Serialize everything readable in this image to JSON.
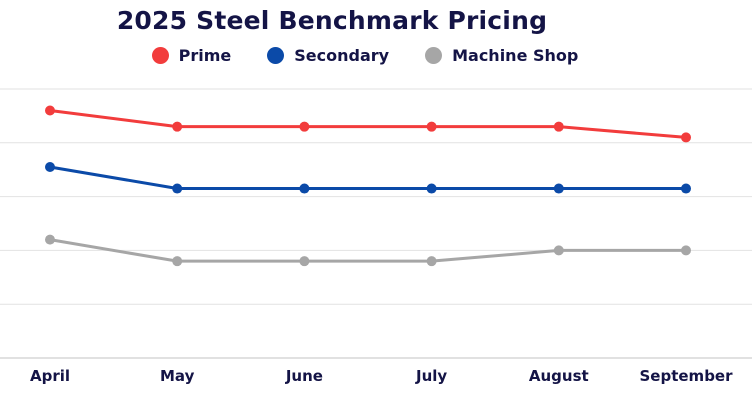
{
  "chart_data": {
    "type": "line",
    "title": "2025 Steel Benchmark Pricing",
    "xlabel": "",
    "ylabel": "",
    "categories": [
      "April",
      "May",
      "June",
      "July",
      "August",
      "September"
    ],
    "ylim": [
      0,
      5
    ],
    "grid": true,
    "legend_position": "top",
    "series": [
      {
        "name": "Prime",
        "color": "#f23c3c",
        "values": [
          4.6,
          4.3,
          4.3,
          4.3,
          4.3,
          4.1
        ]
      },
      {
        "name": "Secondary",
        "color": "#0b4aa8",
        "values": [
          3.55,
          3.15,
          3.15,
          3.15,
          3.15,
          3.15
        ]
      },
      {
        "name": "Machine Shop",
        "color": "#a6a6a6",
        "values": [
          2.2,
          1.8,
          1.8,
          1.8,
          2.0,
          2.0
        ]
      }
    ]
  }
}
